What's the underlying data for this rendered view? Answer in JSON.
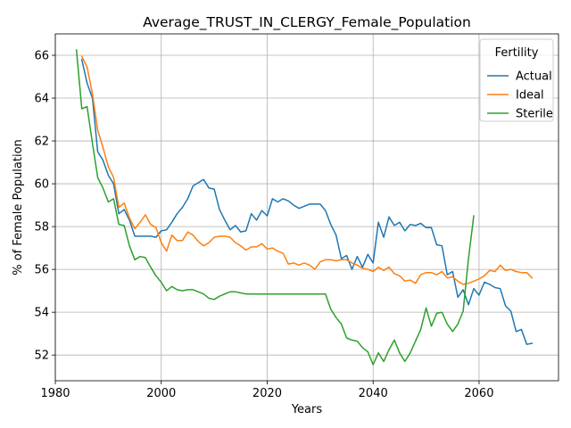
{
  "chart_data": {
    "type": "line",
    "title": "Average_TRUST_IN_CLERGY_Female_Population",
    "xlabel": "Years",
    "ylabel": "% of Female Population",
    "xlim": [
      1980,
      2075
    ],
    "ylim": [
      50.8,
      67.0
    ],
    "xticks": [
      1980,
      2000,
      2020,
      2040,
      2060
    ],
    "yticks": [
      52,
      54,
      56,
      58,
      60,
      62,
      64,
      66
    ],
    "grid": true,
    "legend": {
      "title": "Fertility",
      "placement": "top-right"
    },
    "series": [
      {
        "name": "Actual",
        "color": "#1f77b4",
        "x": [
          1985,
          1986,
          1987,
          1988,
          1989,
          1990,
          1991,
          1992,
          1993,
          1994,
          1995,
          1996,
          1997,
          1998,
          1999,
          2000,
          2001,
          2002,
          2003,
          2004,
          2005,
          2006,
          2007,
          2008,
          2009,
          2010,
          2011,
          2012,
          2013,
          2014,
          2015,
          2016,
          2017,
          2018,
          2019,
          2020,
          2021,
          2022,
          2023,
          2024,
          2025,
          2026,
          2027,
          2028,
          2029,
          2030,
          2031,
          2032,
          2033,
          2034,
          2035,
          2036,
          2037,
          2038,
          2039,
          2040,
          2041,
          2042,
          2043,
          2044,
          2045,
          2046,
          2047,
          2048,
          2049,
          2050,
          2051,
          2052,
          2053,
          2054,
          2055,
          2056,
          2057,
          2058,
          2059,
          2060,
          2061,
          2062,
          2063,
          2064,
          2065,
          2066,
          2067,
          2068,
          2069,
          2070
        ],
        "values": [
          65.8,
          64.7,
          64.0,
          61.5,
          61.1,
          60.4,
          60.0,
          58.6,
          58.8,
          58.3,
          57.55,
          57.55,
          57.55,
          57.55,
          57.5,
          57.8,
          57.85,
          58.2,
          58.6,
          58.9,
          59.3,
          59.9,
          60.05,
          60.2,
          59.8,
          59.75,
          58.8,
          58.3,
          57.85,
          58.05,
          57.75,
          57.8,
          58.6,
          58.3,
          58.75,
          58.5,
          59.3,
          59.15,
          59.3,
          59.2,
          59.0,
          58.85,
          58.95,
          59.05,
          59.05,
          59.05,
          58.75,
          58.1,
          57.6,
          56.5,
          56.65,
          56.0,
          56.6,
          56.1,
          56.7,
          56.3,
          58.2,
          57.5,
          58.45,
          58.05,
          58.2,
          57.8,
          58.1,
          58.05,
          58.15,
          57.95,
          57.95,
          57.15,
          57.1,
          55.75,
          55.9,
          54.7,
          55.05,
          54.35,
          55.1,
          54.8,
          55.4,
          55.3,
          55.15,
          55.1,
          54.3,
          54.05,
          53.1,
          53.2,
          52.5,
          52.55
        ]
      },
      {
        "name": "Ideal",
        "color": "#ff7f0e",
        "x": [
          1985,
          1986,
          1987,
          1988,
          1989,
          1990,
          1991,
          1992,
          1993,
          1994,
          1995,
          1996,
          1997,
          1998,
          1999,
          2000,
          2001,
          2002,
          2003,
          2004,
          2005,
          2006,
          2007,
          2008,
          2009,
          2010,
          2011,
          2012,
          2013,
          2014,
          2015,
          2016,
          2017,
          2018,
          2019,
          2020,
          2021,
          2022,
          2023,
          2024,
          2025,
          2026,
          2027,
          2028,
          2029,
          2030,
          2031,
          2032,
          2033,
          2034,
          2035,
          2036,
          2037,
          2038,
          2039,
          2040,
          2041,
          2042,
          2043,
          2044,
          2045,
          2046,
          2047,
          2048,
          2049,
          2050,
          2051,
          2052,
          2053,
          2054,
          2055,
          2056,
          2057,
          2058,
          2059,
          2060,
          2061,
          2062,
          2063,
          2064,
          2065,
          2066,
          2067,
          2068,
          2069,
          2070
        ],
        "values": [
          65.95,
          65.45,
          64.2,
          62.5,
          61.7,
          60.8,
          60.3,
          58.9,
          59.1,
          58.4,
          57.9,
          58.2,
          58.55,
          58.1,
          57.95,
          57.25,
          56.85,
          57.6,
          57.35,
          57.35,
          57.75,
          57.6,
          57.3,
          57.1,
          57.25,
          57.5,
          57.55,
          57.55,
          57.5,
          57.25,
          57.1,
          56.9,
          57.05,
          57.05,
          57.2,
          56.95,
          57.0,
          56.85,
          56.75,
          56.25,
          56.3,
          56.2,
          56.3,
          56.2,
          56.0,
          56.35,
          56.45,
          56.45,
          56.4,
          56.45,
          56.45,
          56.3,
          56.2,
          56.05,
          56.0,
          55.9,
          56.1,
          55.95,
          56.1,
          55.8,
          55.7,
          55.45,
          55.5,
          55.35,
          55.75,
          55.85,
          55.85,
          55.75,
          55.9,
          55.6,
          55.65,
          55.45,
          55.3,
          55.35,
          55.45,
          55.55,
          55.7,
          55.95,
          55.9,
          56.2,
          55.95,
          56.0,
          55.9,
          55.85,
          55.85,
          55.6
        ]
      },
      {
        "name": "Sterile",
        "color": "#2ca02c",
        "x": [
          1984,
          1985,
          1986,
          1987,
          1988,
          1989,
          1990,
          1991,
          1992,
          1993,
          1994,
          1995,
          1996,
          1997,
          1998,
          1999,
          2000,
          2001,
          2002,
          2003,
          2004,
          2005,
          2006,
          2007,
          2008,
          2009,
          2010,
          2011,
          2012,
          2013,
          2014,
          2015,
          2016,
          2017,
          2018,
          2019,
          2020,
          2021,
          2022,
          2023,
          2024,
          2025,
          2026,
          2027,
          2028,
          2029,
          2030,
          2031,
          2032,
          2033,
          2034,
          2035,
          2036,
          2037,
          2038,
          2039,
          2040,
          2041,
          2042,
          2043,
          2044,
          2045,
          2046,
          2047,
          2048,
          2049,
          2050,
          2051,
          2052,
          2053,
          2054,
          2055,
          2056,
          2057,
          2058,
          2059
        ],
        "values": [
          66.25,
          63.5,
          63.6,
          61.9,
          60.3,
          59.8,
          59.15,
          59.3,
          58.1,
          58.05,
          57.1,
          56.45,
          56.6,
          56.55,
          56.1,
          55.7,
          55.4,
          55.0,
          55.2,
          55.05,
          55.0,
          55.05,
          55.05,
          54.95,
          54.85,
          54.65,
          54.6,
          54.75,
          54.85,
          54.95,
          54.95,
          54.9,
          54.85,
          54.85,
          54.85,
          54.85,
          54.85,
          54.85,
          54.85,
          54.85,
          54.85,
          54.85,
          54.85,
          54.85,
          54.85,
          54.85,
          54.85,
          54.85,
          54.15,
          53.75,
          53.45,
          52.8,
          52.7,
          52.65,
          52.35,
          52.15,
          51.55,
          52.1,
          51.7,
          52.25,
          52.7,
          52.1,
          51.7,
          52.1,
          52.65,
          53.2,
          54.2,
          53.35,
          53.95,
          54.0,
          53.45,
          53.1,
          53.45,
          54.05,
          56.5,
          58.5
        ]
      }
    ]
  }
}
